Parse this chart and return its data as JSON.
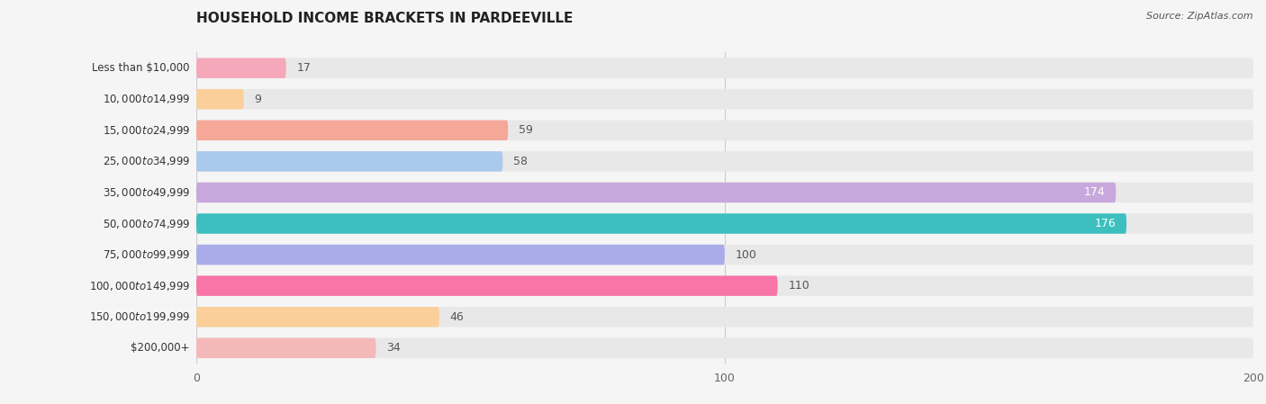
{
  "title": "HOUSEHOLD INCOME BRACKETS IN PARDEEVILLE",
  "source": "Source: ZipAtlas.com",
  "categories": [
    "Less than $10,000",
    "$10,000 to $14,999",
    "$15,000 to $24,999",
    "$25,000 to $34,999",
    "$35,000 to $49,999",
    "$50,000 to $74,999",
    "$75,000 to $99,999",
    "$100,000 to $149,999",
    "$150,000 to $199,999",
    "$200,000+"
  ],
  "values": [
    17,
    9,
    59,
    58,
    174,
    176,
    100,
    110,
    46,
    34
  ],
  "bar_colors": [
    "#F5A8BA",
    "#FBCF9A",
    "#F5A898",
    "#AACAEC",
    "#C8A8DC",
    "#3DBFBF",
    "#AААCEC",
    "#F875A8",
    "#FBCF9A",
    "#F5B8B8"
  ],
  "label_colors": [
    "#555555",
    "#555555",
    "#555555",
    "#555555",
    "#ffffff",
    "#ffffff",
    "#555555",
    "#555555",
    "#555555",
    "#555555"
  ],
  "bg_color": "#f5f5f5",
  "row_bg_color": "#e8e8e8",
  "xlim": [
    0,
    200
  ],
  "figsize": [
    14.06,
    4.49
  ],
  "dpi": 100,
  "bar_height": 0.65,
  "label_threshold": 160
}
